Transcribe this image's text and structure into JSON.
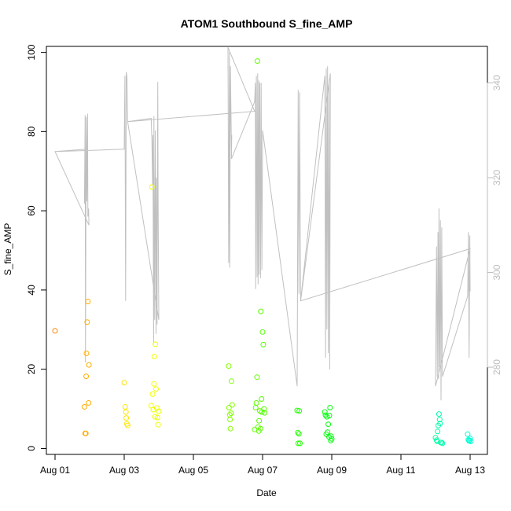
{
  "chart_data": {
    "type": "scatter",
    "title": "ATOM1 Southbound S_fine_AMP",
    "xlabel": "Date",
    "ylabel": "S_fine_AMP",
    "x_unit": "days in August (day of month)",
    "xlim": [
      0.75,
      13.5
    ],
    "ylim": [
      -1.5,
      101.5
    ],
    "y2lim": [
      261.6,
      347.7
    ],
    "x_ticks": [
      {
        "value": 1,
        "label": "Aug 01"
      },
      {
        "value": 3,
        "label": "Aug 03"
      },
      {
        "value": 5,
        "label": "Aug 05"
      },
      {
        "value": 7,
        "label": "Aug 07"
      },
      {
        "value": 9,
        "label": "Aug 09"
      },
      {
        "value": 11,
        "label": "Aug 11"
      },
      {
        "value": 13,
        "label": "Aug 13"
      }
    ],
    "y_ticks": [
      0,
      20,
      40,
      60,
      80,
      100
    ],
    "y2_ticks": [
      280,
      300,
      320,
      340
    ],
    "colors": {
      "grey_line": "#c0c0c0",
      "axis": "#000000",
      "right_axis": "#bdbdbd"
    },
    "scatter_points": [
      [
        1.0,
        29.7
      ],
      [
        1.85,
        10.5
      ],
      [
        1.87,
        3.8
      ],
      [
        1.89,
        3.8
      ],
      [
        1.9,
        18.2
      ],
      [
        1.91,
        24.0
      ],
      [
        1.93,
        31.9
      ],
      [
        1.95,
        37.1
      ],
      [
        1.97,
        11.5
      ],
      [
        1.98,
        21.1
      ],
      [
        3.0,
        16.6
      ],
      [
        3.03,
        10.5
      ],
      [
        3.05,
        9.2
      ],
      [
        3.06,
        7.7
      ],
      [
        3.08,
        6.2
      ],
      [
        3.1,
        5.8
      ],
      [
        3.78,
        10.8
      ],
      [
        3.8,
        66.0
      ],
      [
        3.82,
        13.7
      ],
      [
        3.84,
        9.8
      ],
      [
        3.86,
        16.3
      ],
      [
        3.87,
        23.2
      ],
      [
        3.89,
        8.0
      ],
      [
        3.9,
        26.3
      ],
      [
        3.92,
        15.0
      ],
      [
        3.94,
        10.2
      ],
      [
        3.96,
        7.8
      ],
      [
        3.98,
        6.0
      ],
      [
        4.0,
        9.4
      ],
      [
        6.02,
        20.8
      ],
      [
        6.03,
        10.3
      ],
      [
        6.05,
        8.5
      ],
      [
        6.06,
        7.3
      ],
      [
        6.07,
        5.0
      ],
      [
        6.09,
        8.9
      ],
      [
        6.1,
        17.0
      ],
      [
        6.12,
        11.0
      ],
      [
        6.77,
        4.8
      ],
      [
        6.8,
        10.3
      ],
      [
        6.82,
        11.5
      ],
      [
        6.84,
        18.0
      ],
      [
        6.85,
        97.8
      ],
      [
        6.87,
        5.4
      ],
      [
        6.89,
        4.4
      ],
      [
        6.9,
        7.0
      ],
      [
        6.92,
        9.5
      ],
      [
        6.94,
        5.0
      ],
      [
        6.95,
        34.6
      ],
      [
        6.97,
        12.5
      ],
      [
        6.98,
        9.2
      ],
      [
        7.0,
        29.4
      ],
      [
        7.02,
        26.2
      ],
      [
        7.04,
        10.0
      ],
      [
        7.06,
        9.0
      ],
      [
        8.0,
        9.6
      ],
      [
        8.02,
        4.0
      ],
      [
        8.03,
        1.3
      ],
      [
        8.05,
        3.7
      ],
      [
        8.06,
        9.5
      ],
      [
        8.08,
        1.3
      ],
      [
        8.8,
        9.2
      ],
      [
        8.82,
        8.4
      ],
      [
        8.84,
        3.6
      ],
      [
        8.86,
        8.0
      ],
      [
        8.88,
        4.1
      ],
      [
        8.9,
        6.1
      ],
      [
        8.92,
        2.9
      ],
      [
        8.93,
        8.3
      ],
      [
        8.95,
        10.3
      ],
      [
        8.97,
        2.0
      ],
      [
        8.98,
        3.1
      ],
      [
        9.0,
        2.4
      ],
      [
        12.0,
        2.7
      ],
      [
        12.03,
        2.1
      ],
      [
        12.05,
        1.8
      ],
      [
        12.06,
        4.3
      ],
      [
        12.08,
        5.8
      ],
      [
        12.1,
        8.7
      ],
      [
        12.12,
        7.3
      ],
      [
        12.13,
        6.3
      ],
      [
        12.15,
        1.5
      ],
      [
        12.17,
        1.5
      ],
      [
        12.2,
        1.3
      ],
      [
        12.93,
        3.6
      ],
      [
        12.95,
        2.2
      ],
      [
        12.97,
        1.9
      ],
      [
        12.98,
        2.1
      ],
      [
        13.0,
        2.5
      ],
      [
        13.02,
        1.8
      ]
    ],
    "grey_series": [
      [
        1.0,
        325.5
      ],
      [
        1.9,
        326.0
      ],
      [
        1.91,
        324.0
      ],
      [
        1.93,
        324.3
      ],
      [
        1.85,
        314.5
      ],
      [
        1.87,
        333.2
      ],
      [
        1.88,
        281.0
      ],
      [
        1.9,
        332.8
      ],
      [
        1.92,
        315.0
      ],
      [
        1.94,
        333.5
      ],
      [
        1.95,
        311.8
      ],
      [
        1.97,
        313.5
      ],
      [
        1.98,
        310.0
      ],
      [
        1.0,
        325.5
      ],
      [
        3.0,
        326.0
      ],
      [
        3.02,
        341.5
      ],
      [
        3.04,
        294.0
      ],
      [
        3.06,
        342.3
      ],
      [
        3.08,
        341.2
      ],
      [
        3.1,
        331.8
      ],
      [
        3.78,
        332.5
      ],
      [
        3.8,
        328.0
      ],
      [
        3.82,
        318.5
      ],
      [
        3.83,
        329.0
      ],
      [
        3.85,
        285.0
      ],
      [
        3.86,
        333.0
      ],
      [
        3.88,
        290.0
      ],
      [
        3.9,
        330.0
      ],
      [
        3.92,
        287.0
      ],
      [
        3.93,
        320.0
      ],
      [
        3.95,
        289.0
      ],
      [
        3.97,
        340.2
      ],
      [
        3.98,
        316.0
      ],
      [
        4.0,
        290.0
      ],
      [
        3.1,
        331.8
      ],
      [
        6.77,
        334.0
      ],
      [
        6.0,
        347.5
      ],
      [
        6.02,
        302.0
      ],
      [
        6.04,
        346.5
      ],
      [
        6.05,
        301.0
      ],
      [
        6.07,
        343.5
      ],
      [
        6.1,
        326.0
      ],
      [
        6.11,
        329.0
      ],
      [
        6.1,
        324.0
      ],
      [
        6.77,
        336.0
      ],
      [
        6.79,
        340.0
      ],
      [
        6.8,
        296.5
      ],
      [
        6.82,
        341.5
      ],
      [
        6.84,
        299.0
      ],
      [
        6.86,
        342.0
      ],
      [
        6.87,
        297.5
      ],
      [
        6.89,
        340.5
      ],
      [
        6.9,
        299.5
      ],
      [
        6.92,
        340.0
      ],
      [
        6.94,
        298.8
      ],
      [
        6.96,
        340.0
      ],
      [
        6.98,
        300.5
      ],
      [
        7.0,
        330.0
      ],
      [
        7.0,
        330.0
      ],
      [
        8.0,
        276.0
      ],
      [
        8.03,
        338.5
      ],
      [
        8.05,
        295.5
      ],
      [
        8.07,
        338.0
      ],
      [
        8.1,
        294.0
      ],
      [
        8.1,
        294.0
      ],
      [
        8.8,
        341.5
      ],
      [
        8.82,
        282.0
      ],
      [
        8.84,
        343.0
      ],
      [
        8.86,
        288.0
      ],
      [
        8.88,
        343.5
      ],
      [
        8.9,
        283.0
      ],
      [
        8.92,
        340.0
      ],
      [
        8.94,
        279.5
      ],
      [
        8.96,
        342.0
      ],
      [
        8.96,
        342.0
      ],
      [
        8.1,
        294.0
      ],
      [
        13.0,
        305.0
      ],
      [
        12.0,
        276.0
      ],
      [
        12.03,
        305.5
      ],
      [
        12.05,
        278.0
      ],
      [
        12.07,
        308.5
      ],
      [
        12.09,
        277.5
      ],
      [
        12.1,
        313.5
      ],
      [
        12.12,
        280.0
      ],
      [
        12.14,
        311.0
      ],
      [
        12.16,
        273.0
      ],
      [
        12.18,
        309.5
      ],
      [
        12.2,
        278.0
      ],
      [
        12.2,
        278.0
      ],
      [
        12.93,
        295.0
      ],
      [
        12.95,
        308.5
      ],
      [
        12.97,
        282.0
      ],
      [
        12.99,
        307.8
      ],
      [
        13.0,
        296.0
      ]
    ]
  }
}
